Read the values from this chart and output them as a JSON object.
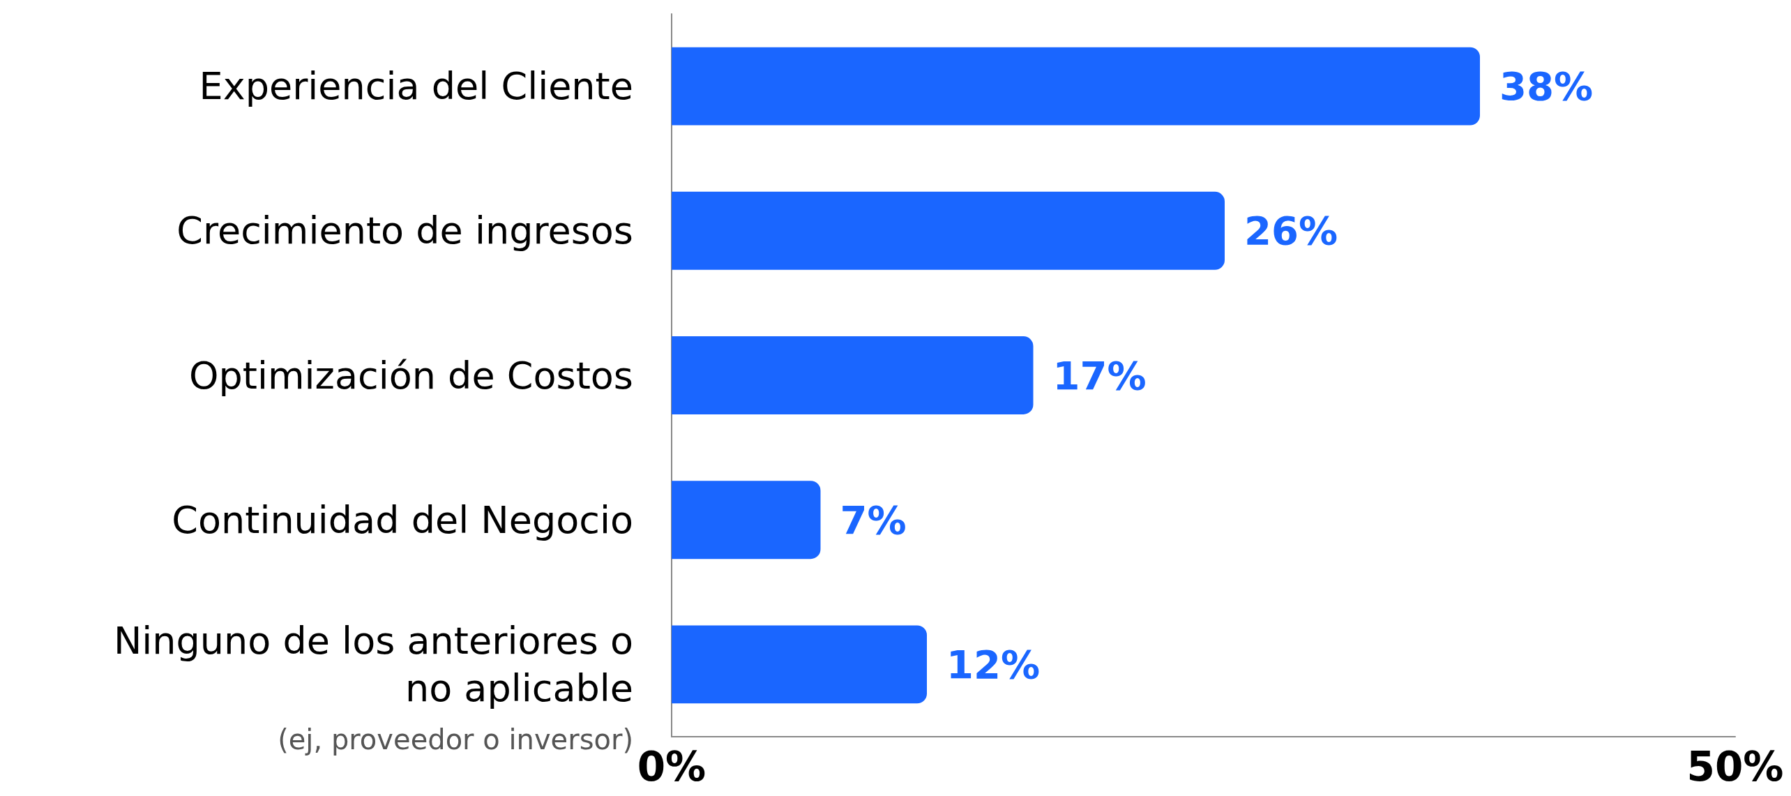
{
  "chart_data": {
    "type": "bar",
    "orientation": "horizontal",
    "categories": [
      "Experiencia del Cliente",
      "Crecimiento de ingresos",
      "Optimización de Costos",
      "Continuidad del Negocio",
      "Ninguno de los anteriores o no aplicable"
    ],
    "values": [
      38,
      26,
      17,
      7,
      12
    ],
    "value_labels": [
      "38%",
      "26%",
      "17%",
      "7%",
      "12%"
    ],
    "color": "#1a66ff",
    "xlim": [
      0,
      50
    ],
    "xticks": [
      {
        "value": 0,
        "label": "0%"
      },
      {
        "value": 50,
        "label": "50%"
      }
    ],
    "grid": false,
    "annotations": [
      "(ej, proveedor o inversor)"
    ]
  }
}
